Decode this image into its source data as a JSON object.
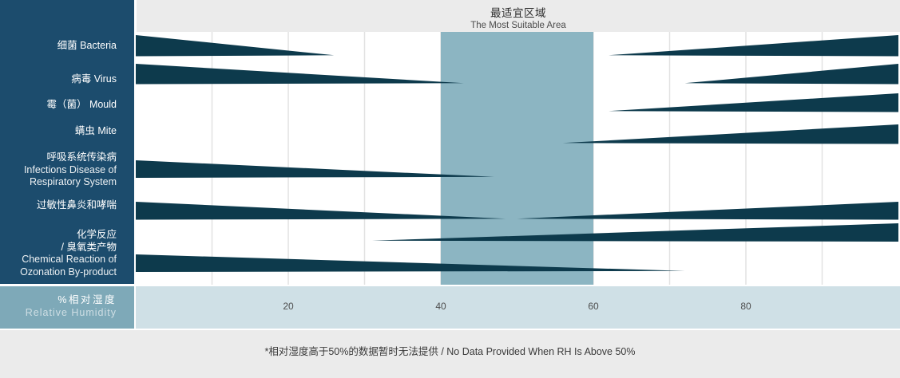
{
  "header": {
    "title_zh": "最适宜区域",
    "title_en": "The Most Suitable Area"
  },
  "sidebar": {
    "rows": [
      {
        "lines": [
          "细菌 Bacteria"
        ]
      },
      {
        "lines": [
          "病毒 Virus"
        ]
      },
      {
        "lines": [
          "霉（菌） Mould"
        ]
      },
      {
        "lines": [
          "螨虫 Mite"
        ]
      },
      {
        "lines": [
          "呼吸系统传染病",
          "Infections Disease of",
          "Respiratory System"
        ]
      },
      {
        "lines": [
          "过敏性鼻炎和哮喘"
        ]
      },
      {
        "lines": [
          "化学反应",
          "/ 臭氧类产物",
          "Chemical Reaction of",
          "Ozonation By-product"
        ]
      }
    ]
  },
  "axis": {
    "label_zh": "%相对湿度",
    "label_en": "Relative Humidity"
  },
  "footer": {
    "note": "*相对湿度高于50%的数据暂时无法提供 / No Data Provided When RH Is Above 50%"
  },
  "colors": {
    "sidebar_bg": "#1c4c6d",
    "wedge": "#0d3a4c",
    "optimal_band": "#8cb5c2",
    "axis_strip_bg": "#cfe0e6",
    "humidity_cell_bg": "#7ea9b8",
    "header_bg": "#ebebeb",
    "footer_bg": "#ebebeb",
    "gridline": "#e2e2e2"
  },
  "chart_data": {
    "type": "area",
    "title": "最适宜区域 The Most Suitable Area",
    "xlabel": "%相对湿度 Relative Humidity",
    "xlim": [
      0,
      100
    ],
    "xticks": [
      20,
      40,
      60,
      80
    ],
    "grid_step": 10,
    "legend_position": "none",
    "optimal_band": {
      "rh_from": 40,
      "rh_to": 60
    },
    "bands": [
      {
        "row": "细菌 Bacteria",
        "wedges": [
          {
            "side": "left",
            "rh_from": 0,
            "rh_to": 26
          },
          {
            "side": "right",
            "rh_from": 62,
            "rh_to": 100
          }
        ]
      },
      {
        "row": "病毒 Virus",
        "wedges": [
          {
            "side": "left",
            "rh_from": 0,
            "rh_to": 43
          },
          {
            "side": "right",
            "rh_from": 72,
            "rh_to": 100
          }
        ]
      },
      {
        "row": "霉（菌） Mould",
        "wedges": [
          {
            "side": "right",
            "rh_from": 62,
            "rh_to": 100
          }
        ]
      },
      {
        "row": "螨虫 Mite",
        "wedges": [
          {
            "side": "right",
            "rh_from": 56,
            "rh_to": 100
          }
        ]
      },
      {
        "row": "呼吸系统传染病 Infections Disease of Respiratory System",
        "wedges": [
          {
            "side": "left",
            "rh_from": 0,
            "rh_to": 47
          }
        ]
      },
      {
        "row": "过敏性鼻炎和哮喘",
        "wedges": [
          {
            "side": "left",
            "rh_from": 0,
            "rh_to": 48.5
          },
          {
            "side": "right",
            "rh_from": 50,
            "rh_to": 100
          }
        ]
      },
      {
        "row": "化学反应 / 臭氧类产物 Chemical Reaction of Ozonation By-product",
        "wedges": [
          {
            "side": "right",
            "rh_from": 31,
            "rh_to": 100
          }
        ]
      },
      {
        "row": "化学反应 / 臭氧类产物 Chemical Reaction of Ozonation By-product",
        "wedges": [
          {
            "side": "left",
            "rh_from": 0,
            "rh_to": 72
          }
        ]
      }
    ],
    "note": "*相对湿度高于50%的数据暂时无法提供 / No Data Provided When RH Is Above 50%"
  }
}
